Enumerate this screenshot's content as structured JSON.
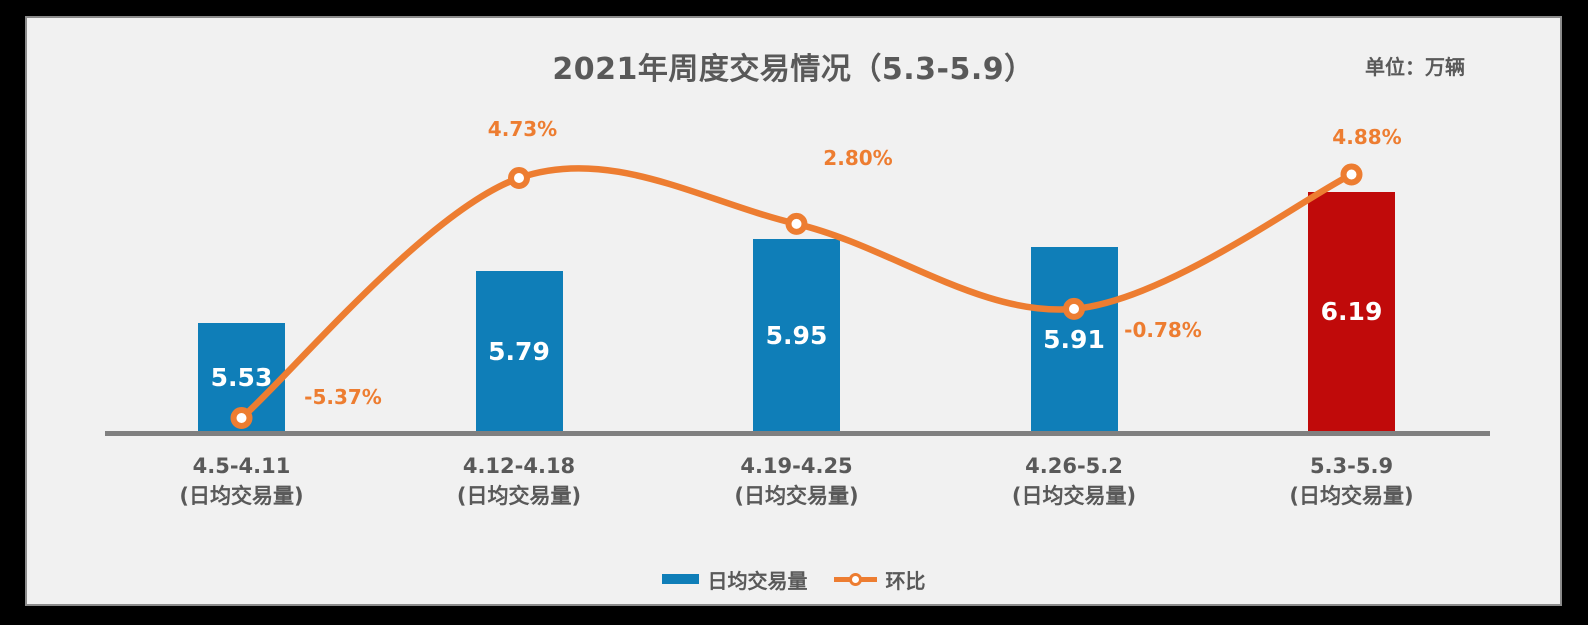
{
  "header": {
    "title": "2021年周度交易情况（5.3-5.9）",
    "unit_label": "单位：万辆"
  },
  "legend": {
    "bar_label": "日均交易量",
    "line_label": "环比",
    "position": "bottom-center"
  },
  "colors": {
    "bar_blue": "#0F7EB8",
    "bar_highlight_red": "#C00A0A",
    "line_orange": "#ED7D31",
    "text_gray": "#595959",
    "axis_gray": "#808080",
    "plot_background": "#F1F1F1",
    "outer_background": "#000000"
  },
  "chart_data": {
    "type": "bar+line combo",
    "title": "2021年周度交易情况（5.3-5.9）",
    "unit": "万辆",
    "categories": [
      "4.5-4.11",
      "4.12-4.18",
      "4.19-4.25",
      "4.26-5.2",
      "5.3-5.9"
    ],
    "category_sub_label": "(日均交易量)",
    "series": [
      {
        "name": "日均交易量",
        "type": "bar",
        "values": [
          5.53,
          5.79,
          5.95,
          5.91,
          6.19
        ],
        "value_labels": [
          "5.53",
          "5.79",
          "5.95",
          "5.91",
          "6.19"
        ],
        "bar_colors": [
          "#0F7EB8",
          "#0F7EB8",
          "#0F7EB8",
          "#0F7EB8",
          "#C00A0A"
        ],
        "value_label_color": "#FFFFFF"
      },
      {
        "name": "环比",
        "type": "line",
        "values_pct": [
          -5.37,
          4.73,
          2.8,
          -0.78,
          4.88
        ],
        "point_labels": [
          "-5.37%",
          "4.73%",
          "2.80%",
          "-0.78%",
          "4.88%"
        ],
        "line_color": "#ED7D31",
        "marker": "circle-white-fill-orange-ring",
        "smooth": true
      }
    ],
    "axes": {
      "x_gridlines": false,
      "y_axis_visible": false,
      "bar_axis_implied_min": 4.98,
      "x_axis_line_color": "#808080"
    },
    "legend_entries": [
      "日均交易量",
      "环比"
    ]
  }
}
